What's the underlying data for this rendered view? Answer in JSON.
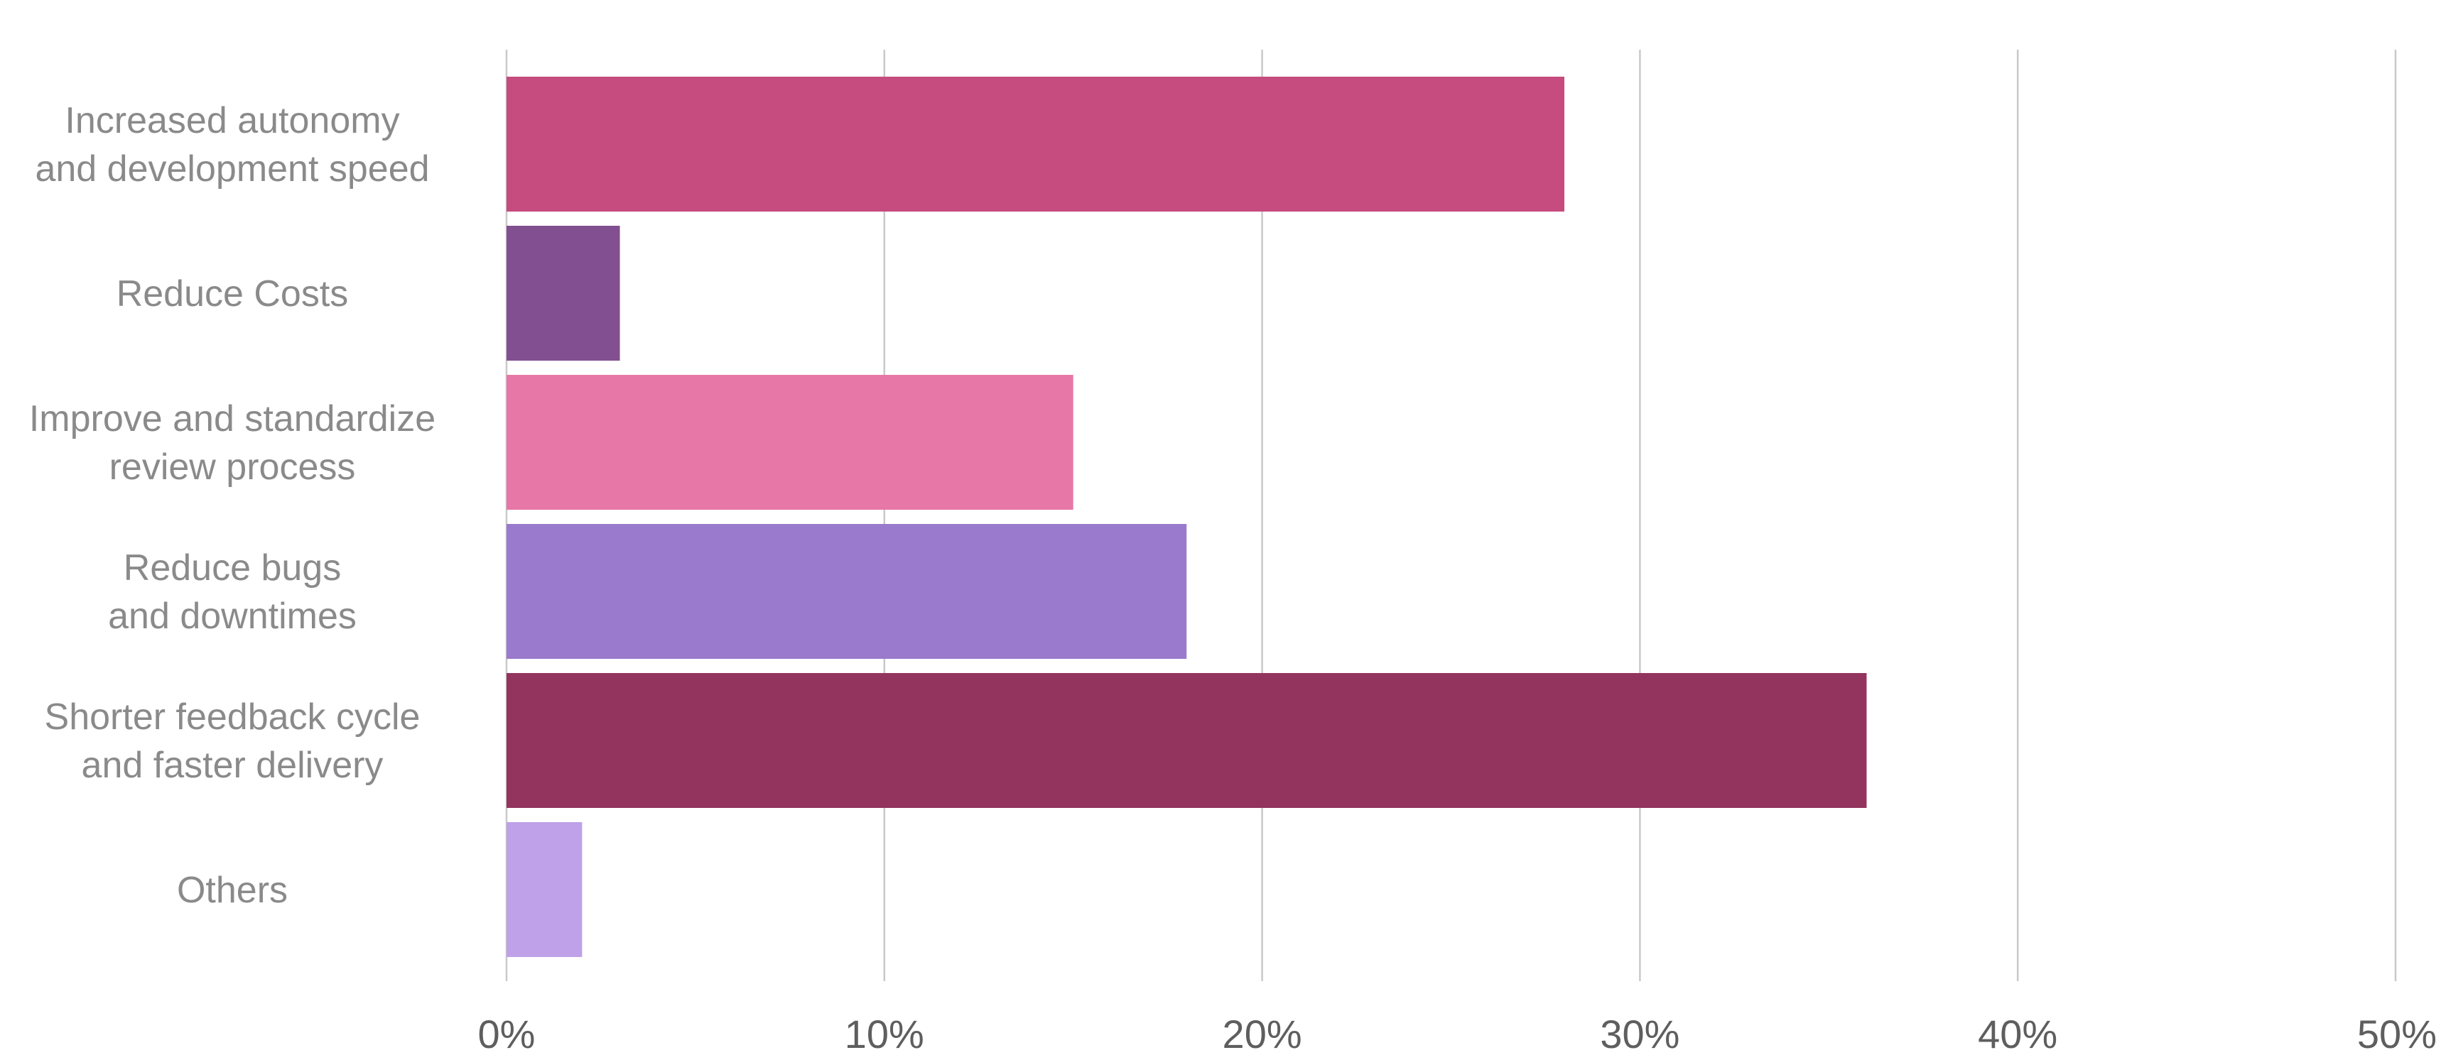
{
  "chart_data": {
    "type": "bar",
    "orientation": "horizontal",
    "categories": [
      [
        "Increased autonomy",
        "and development speed"
      ],
      [
        "Reduce Costs"
      ],
      [
        "Improve and standardize",
        "review process"
      ],
      [
        "Reduce bugs",
        "and downtimes"
      ],
      [
        "Shorter feedback cycle",
        "and faster delivery"
      ],
      [
        "Others"
      ]
    ],
    "values": [
      28,
      3,
      15,
      18,
      36,
      2
    ],
    "colors": [
      "#c64b7e",
      "#824f90",
      "#e777a7",
      "#9a7acc",
      "#93345e",
      "#bea1e8"
    ],
    "xlim": [
      0,
      50
    ],
    "xticks": [
      0,
      10,
      20,
      30,
      40,
      50
    ],
    "xtick_labels": [
      "0%",
      "10%",
      "20%",
      "30%",
      "40%",
      "50%"
    ],
    "grid": "vertical",
    "title": "",
    "xlabel": "",
    "ylabel": ""
  }
}
